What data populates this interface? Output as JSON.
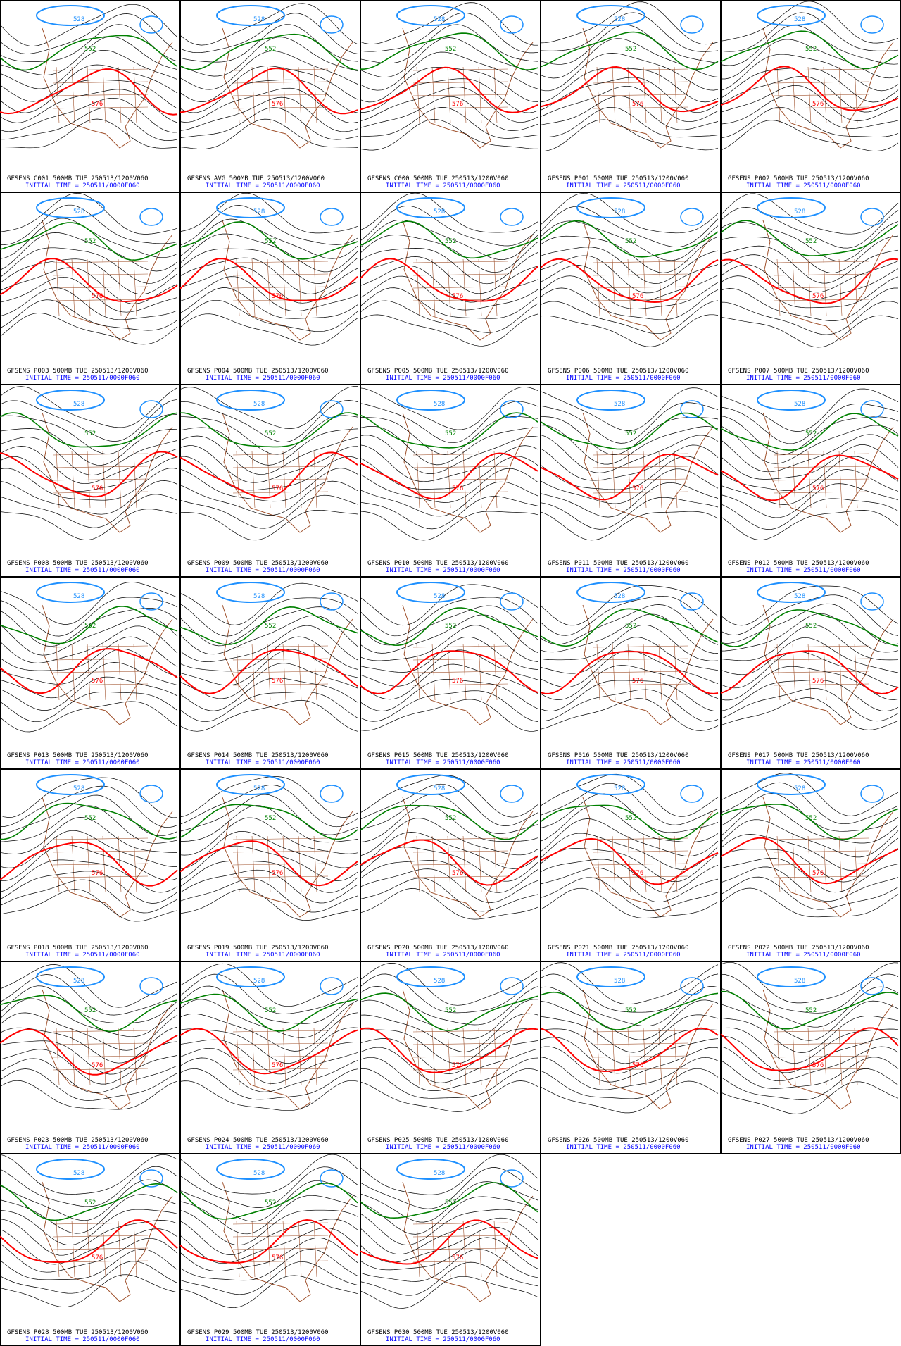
{
  "contour_labels": [
    528,
    552,
    576
  ],
  "panels": [
    {
      "title": "GFSENS C001 500MB TUE 250513/1200V060",
      "init_time": "INITIAL TIME = 250511/0000F060"
    },
    {
      "title": "GFSENS AVG 500MB TUE 250513/1200V060",
      "init_time": "INITIAL TIME = 250511/0000F060"
    },
    {
      "title": "GFSENS C000 500MB TUE 250513/1200V060",
      "init_time": "INITIAL TIME = 250511/0000F060"
    },
    {
      "title": "GFSENS P001 500MB TUE 250513/1200V060",
      "init_time": "INITIAL TIME = 250511/0000F060"
    },
    {
      "title": "GFSENS P002 500MB TUE 250513/1200V060",
      "init_time": "INITIAL TIME = 250511/0000F060"
    },
    {
      "title": "GFSENS P003 500MB TUE 250513/1200V060",
      "init_time": "INITIAL TIME = 250511/0000F060"
    },
    {
      "title": "GFSENS P004 500MB TUE 250513/1200V060",
      "init_time": "INITIAL TIME = 250511/0000F060"
    },
    {
      "title": "GFSENS P005 500MB TUE 250513/1200V060",
      "init_time": "INITIAL TIME = 250511/0000F060"
    },
    {
      "title": "GFSENS P006 500MB TUE 250513/1200V060",
      "init_time": "INITIAL TIME = 250511/0000F060"
    },
    {
      "title": "GFSENS P007 500MB TUE 250513/1200V060",
      "init_time": "INITIAL TIME = 250511/0000F060"
    },
    {
      "title": "GFSENS P008 500MB TUE 250513/1200V060",
      "init_time": "INITIAL TIME = 250511/0000F060"
    },
    {
      "title": "GFSENS P009 500MB TUE 250513/1200V060",
      "init_time": "INITIAL TIME = 250511/0000F060"
    },
    {
      "title": "GFSENS P010 500MB TUE 250513/1200V060",
      "init_time": "INITIAL TIME = 250511/0000F060"
    },
    {
      "title": "GFSENS P011 500MB TUE 250513/1200V060",
      "init_time": "INITIAL TIME = 250511/0000F060"
    },
    {
      "title": "GFSENS P012 500MB TUE 250513/1200V060",
      "init_time": "INITIAL TIME = 250511/0000F060"
    },
    {
      "title": "GFSENS P013 500MB TUE 250513/1200V060",
      "init_time": "INITIAL TIME = 250511/0000F060"
    },
    {
      "title": "GFSENS P014 500MB TUE 250513/1200V060",
      "init_time": "INITIAL TIME = 250511/0000F060"
    },
    {
      "title": "GFSENS P015 500MB TUE 250513/1200V060",
      "init_time": "INITIAL TIME = 250511/0000F060"
    },
    {
      "title": "GFSENS P016 500MB TUE 250513/1200V060",
      "init_time": "INITIAL TIME = 250511/0000F060"
    },
    {
      "title": "GFSENS P017 500MB TUE 250513/1200V060",
      "init_time": "INITIAL TIME = 250511/0000F060"
    },
    {
      "title": "GFSENS P018 500MB TUE 250513/1200V060",
      "init_time": "INITIAL TIME = 250511/0000F060"
    },
    {
      "title": "GFSENS P019 500MB TUE 250513/1200V060",
      "init_time": "INITIAL TIME = 250511/0000F060"
    },
    {
      "title": "GFSENS P020 500MB TUE 250513/1200V060",
      "init_time": "INITIAL TIME = 250511/0000F060"
    },
    {
      "title": "GFSENS P021 500MB TUE 250513/1200V060",
      "init_time": "INITIAL TIME = 250511/0000F060"
    },
    {
      "title": "GFSENS P022 500MB TUE 250513/1200V060",
      "init_time": "INITIAL TIME = 250511/0000F060"
    },
    {
      "title": "GFSENS P023 500MB TUE 250513/1200V060",
      "init_time": "INITIAL TIME = 250511/0000F060"
    },
    {
      "title": "GFSENS P024 500MB TUE 250513/1200V060",
      "init_time": "INITIAL TIME = 250511/0000F060"
    },
    {
      "title": "GFSENS P025 500MB TUE 250513/1200V060",
      "init_time": "INITIAL TIME = 250511/0000F060"
    },
    {
      "title": "GFSENS P026 500MB TUE 250513/1200V060",
      "init_time": "INITIAL TIME = 250511/0000F060"
    },
    {
      "title": "GFSENS P027 500MB TUE 250513/1200V060",
      "init_time": "INITIAL TIME = 250511/0000F060"
    },
    {
      "title": "GFSENS P028 500MB TUE 250513/1200V060",
      "init_time": "INITIAL TIME = 250511/0000F060"
    },
    {
      "title": "GFSENS P029 500MB TUE 250513/1200V060",
      "init_time": "INITIAL TIME = 250511/0000F060"
    },
    {
      "title": "GFSENS P030 500MB TUE 250513/1200V060",
      "init_time": "INITIAL TIME = 250511/0000F060"
    }
  ]
}
